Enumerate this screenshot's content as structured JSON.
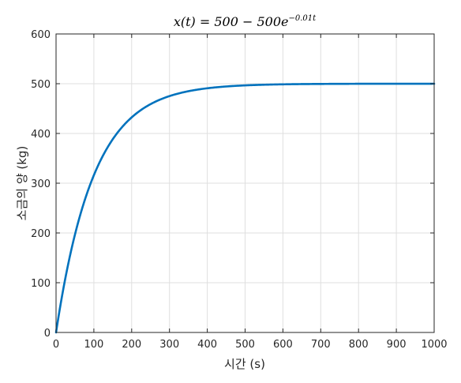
{
  "chart_data": {
    "type": "line",
    "title_parts": {
      "lhs": "x(t) = 500 − 500e",
      "exponent": "−0.01t"
    },
    "xlabel": "시간 (s)",
    "ylabel": "소금의 양 (kg)",
    "xlim": [
      0,
      1000
    ],
    "ylim": [
      0,
      600
    ],
    "xticks": [
      0,
      100,
      200,
      300,
      400,
      500,
      600,
      700,
      800,
      900,
      1000
    ],
    "yticks": [
      0,
      100,
      200,
      300,
      400,
      500,
      600
    ],
    "grid": true,
    "series": [
      {
        "color": "#0072BD",
        "function": "500 - 500*exp(-0.01*t)",
        "x": [
          0,
          50,
          100,
          150,
          200,
          250,
          300,
          350,
          400,
          450,
          500,
          600,
          700,
          800,
          900,
          1000
        ],
        "y": [
          0,
          196.7,
          316.1,
          388.4,
          432.3,
          458.9,
          475.1,
          484.9,
          490.8,
          494.4,
          496.6,
          498.8,
          499.5,
          499.8,
          499.9,
          500.0
        ]
      }
    ]
  }
}
